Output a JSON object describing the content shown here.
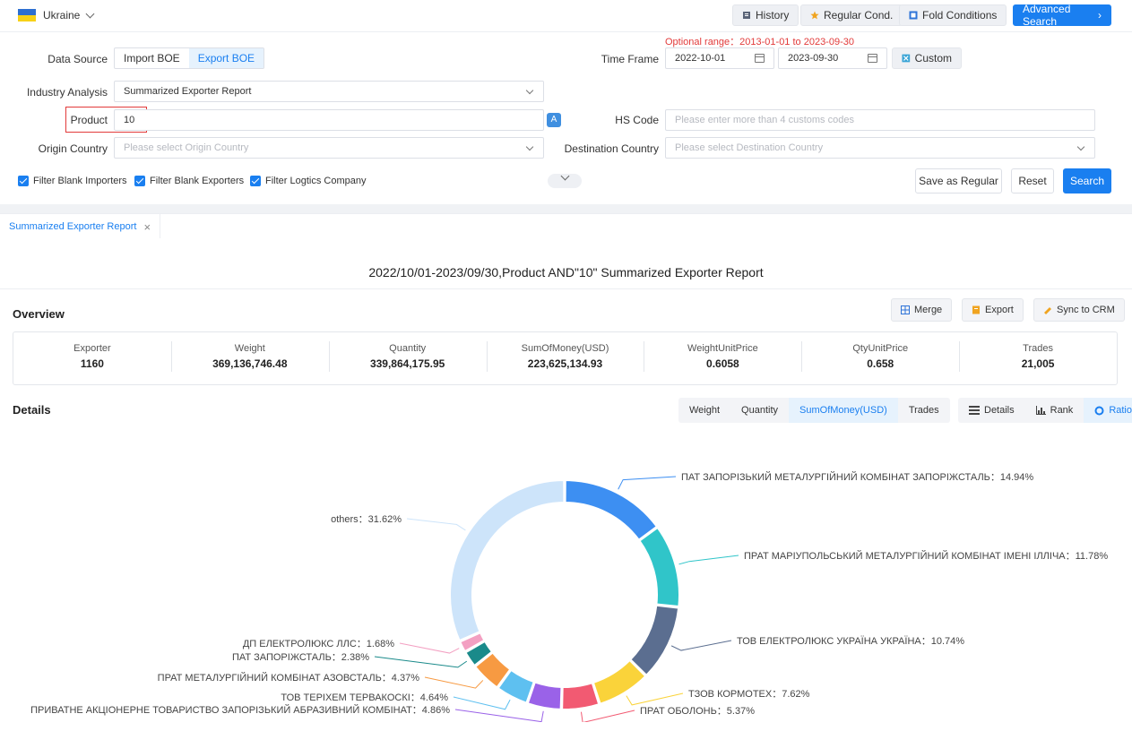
{
  "header": {
    "country": "Ukraine",
    "history_label": "History",
    "regular_cond_label": "Regular Cond.",
    "fold_conditions_label": "Fold Conditions",
    "advanced_search_label": "Advanced Search"
  },
  "filters": {
    "optional_range": "Optional range：2013-01-01 to 2023-09-30",
    "data_source_label": "Data Source",
    "data_source_options": [
      "Import BOE",
      "Export BOE"
    ],
    "data_source_selected": "Export BOE",
    "time_frame_label": "Time Frame",
    "date_from": "2022-10-01",
    "date_to": "2023-09-30",
    "custom_label": "Custom",
    "industry_label": "Industry Analysis",
    "industry_value": "Summarized Exporter Report",
    "product_label": "Product",
    "product_value": "10",
    "hs_code_label": "HS Code",
    "hs_code_placeholder": "Please enter more than 4 customs codes",
    "origin_label": "Origin Country",
    "origin_placeholder": "Please select Origin Country",
    "destination_label": "Destination Country",
    "destination_placeholder": "Please select Destination Country",
    "checkbox_importers": "Filter Blank Importers",
    "checkbox_exporters": "Filter Blank Exporters",
    "checkbox_logistics": "Filter Logtics Company",
    "save_regular_label": "Save as Regular",
    "reset_label": "Reset",
    "search_label": "Search"
  },
  "tab": {
    "label": "Summarized Exporter Report",
    "close": "×"
  },
  "report": {
    "title": "2022/10/01-2023/09/30,Product AND\"10\" Summarized Exporter Report",
    "overview_label": "Overview",
    "merge_label": "Merge",
    "export_label": "Export",
    "sync_label": "Sync to CRM",
    "stats": [
      {
        "key": "Exporter",
        "value": "1160"
      },
      {
        "key": "Weight",
        "value": "369,136,746.48"
      },
      {
        "key": "Quantity",
        "value": "339,864,175.95"
      },
      {
        "key": "SumOfMoney(USD)",
        "value": "223,625,134.93"
      },
      {
        "key": "WeightUnitPrice",
        "value": "0.6058"
      },
      {
        "key": "QtyUnitPrice",
        "value": "0.658"
      },
      {
        "key": "Trades",
        "value": "21,005"
      }
    ],
    "details_label": "Details",
    "metric_tabs": [
      "Weight",
      "Quantity",
      "SumOfMoney(USD)",
      "Trades"
    ],
    "metric_selected": "SumOfMoney(USD)",
    "view_tabs": [
      "Details",
      "Rank",
      "Ratio"
    ],
    "view_selected": "Ratio"
  },
  "colors": {
    "accent": "#1a7ff0",
    "danger": "#e23a3a"
  },
  "chart_data": {
    "type": "pie",
    "donut": true,
    "categories": [
      "ПАТ ЗАПОРІЗЬКИЙ МЕТАЛУРГІЙНИЙ КОМБІНАТ ЗАПОРІЖСТАЛЬ",
      "ПРАТ МАРІУПОЛЬСЬКИЙ МЕТАЛУРГІЙНИЙ КОМБІНАТ ІМЕНІ ІЛЛІЧА",
      "ТОВ ЕЛЕКТРОЛЮКС УКРАЇНА УКРАЇНА",
      "ТЗОВ КОРМОТЕХ",
      "ПРАТ ОБОЛОНЬ",
      "ПРИВАТНЕ АКЦІОНЕРНЕ ТОВАРИСТВО ЗАПОРІЗЬКИЙ АБРАЗИВНИЙ КОМБІНАТ",
      "ТОВ ТЕРІХЕМ ТЕРВАКОСКІ",
      "ПРАТ МЕТАЛУРГІЙНИЙ КОМБІНАТ АЗОВСТАЛЬ",
      "ПАТ ЗАПОРІЖСТАЛЬ",
      "ДП ЕЛЕКТРОЛЮКС ЛЛС",
      "others"
    ],
    "values": [
      14.94,
      11.78,
      10.74,
      7.62,
      5.37,
      4.86,
      4.64,
      4.37,
      2.38,
      1.68,
      31.62
    ],
    "labels": [
      "ПАТ ЗАПОРІЗЬКИЙ МЕТАЛУРГІЙНИЙ КОМБІНАТ ЗАПОРІЖСТАЛЬ：14.94%",
      "ПРАТ МАРІУПОЛЬСЬКИЙ МЕТАЛУРГІЙНИЙ КОМБІНАТ ІМЕНІ ІЛЛІЧА：11.78%",
      "ТОВ ЕЛЕКТРОЛЮКС УКРАЇНА УКРАЇНА：10.74%",
      "ТЗОВ КОРМОТЕХ：7.62%",
      "ПРАТ ОБОЛОНЬ：5.37%",
      "ПРИВАТНЕ АКЦІОНЕРНЕ ТОВАРИСТВО ЗАПОРІЗЬКИЙ АБРАЗИВНИЙ КОМБІНАТ：4.86%",
      "ТОВ ТЕРІХЕМ ТЕРВАКОСКІ：4.64%",
      "ПРАТ МЕТАЛУРГІЙНИЙ КОМБІНАТ АЗОВСТАЛЬ：4.37%",
      "ПАТ ЗАПОРІЖСТАЛЬ：2.38%",
      "ДП ЕЛЕКТРОЛЮКС ЛЛС：1.68%",
      "others：31.62%"
    ],
    "unit": "%",
    "colors": [
      "#3d8ff2",
      "#30c5c9",
      "#5b6e90",
      "#fad33a",
      "#f25a72",
      "#9a62e8",
      "#5ec0f0",
      "#f79a42",
      "#1a8a8a",
      "#f3a0c2",
      "#cde4fa"
    ]
  }
}
